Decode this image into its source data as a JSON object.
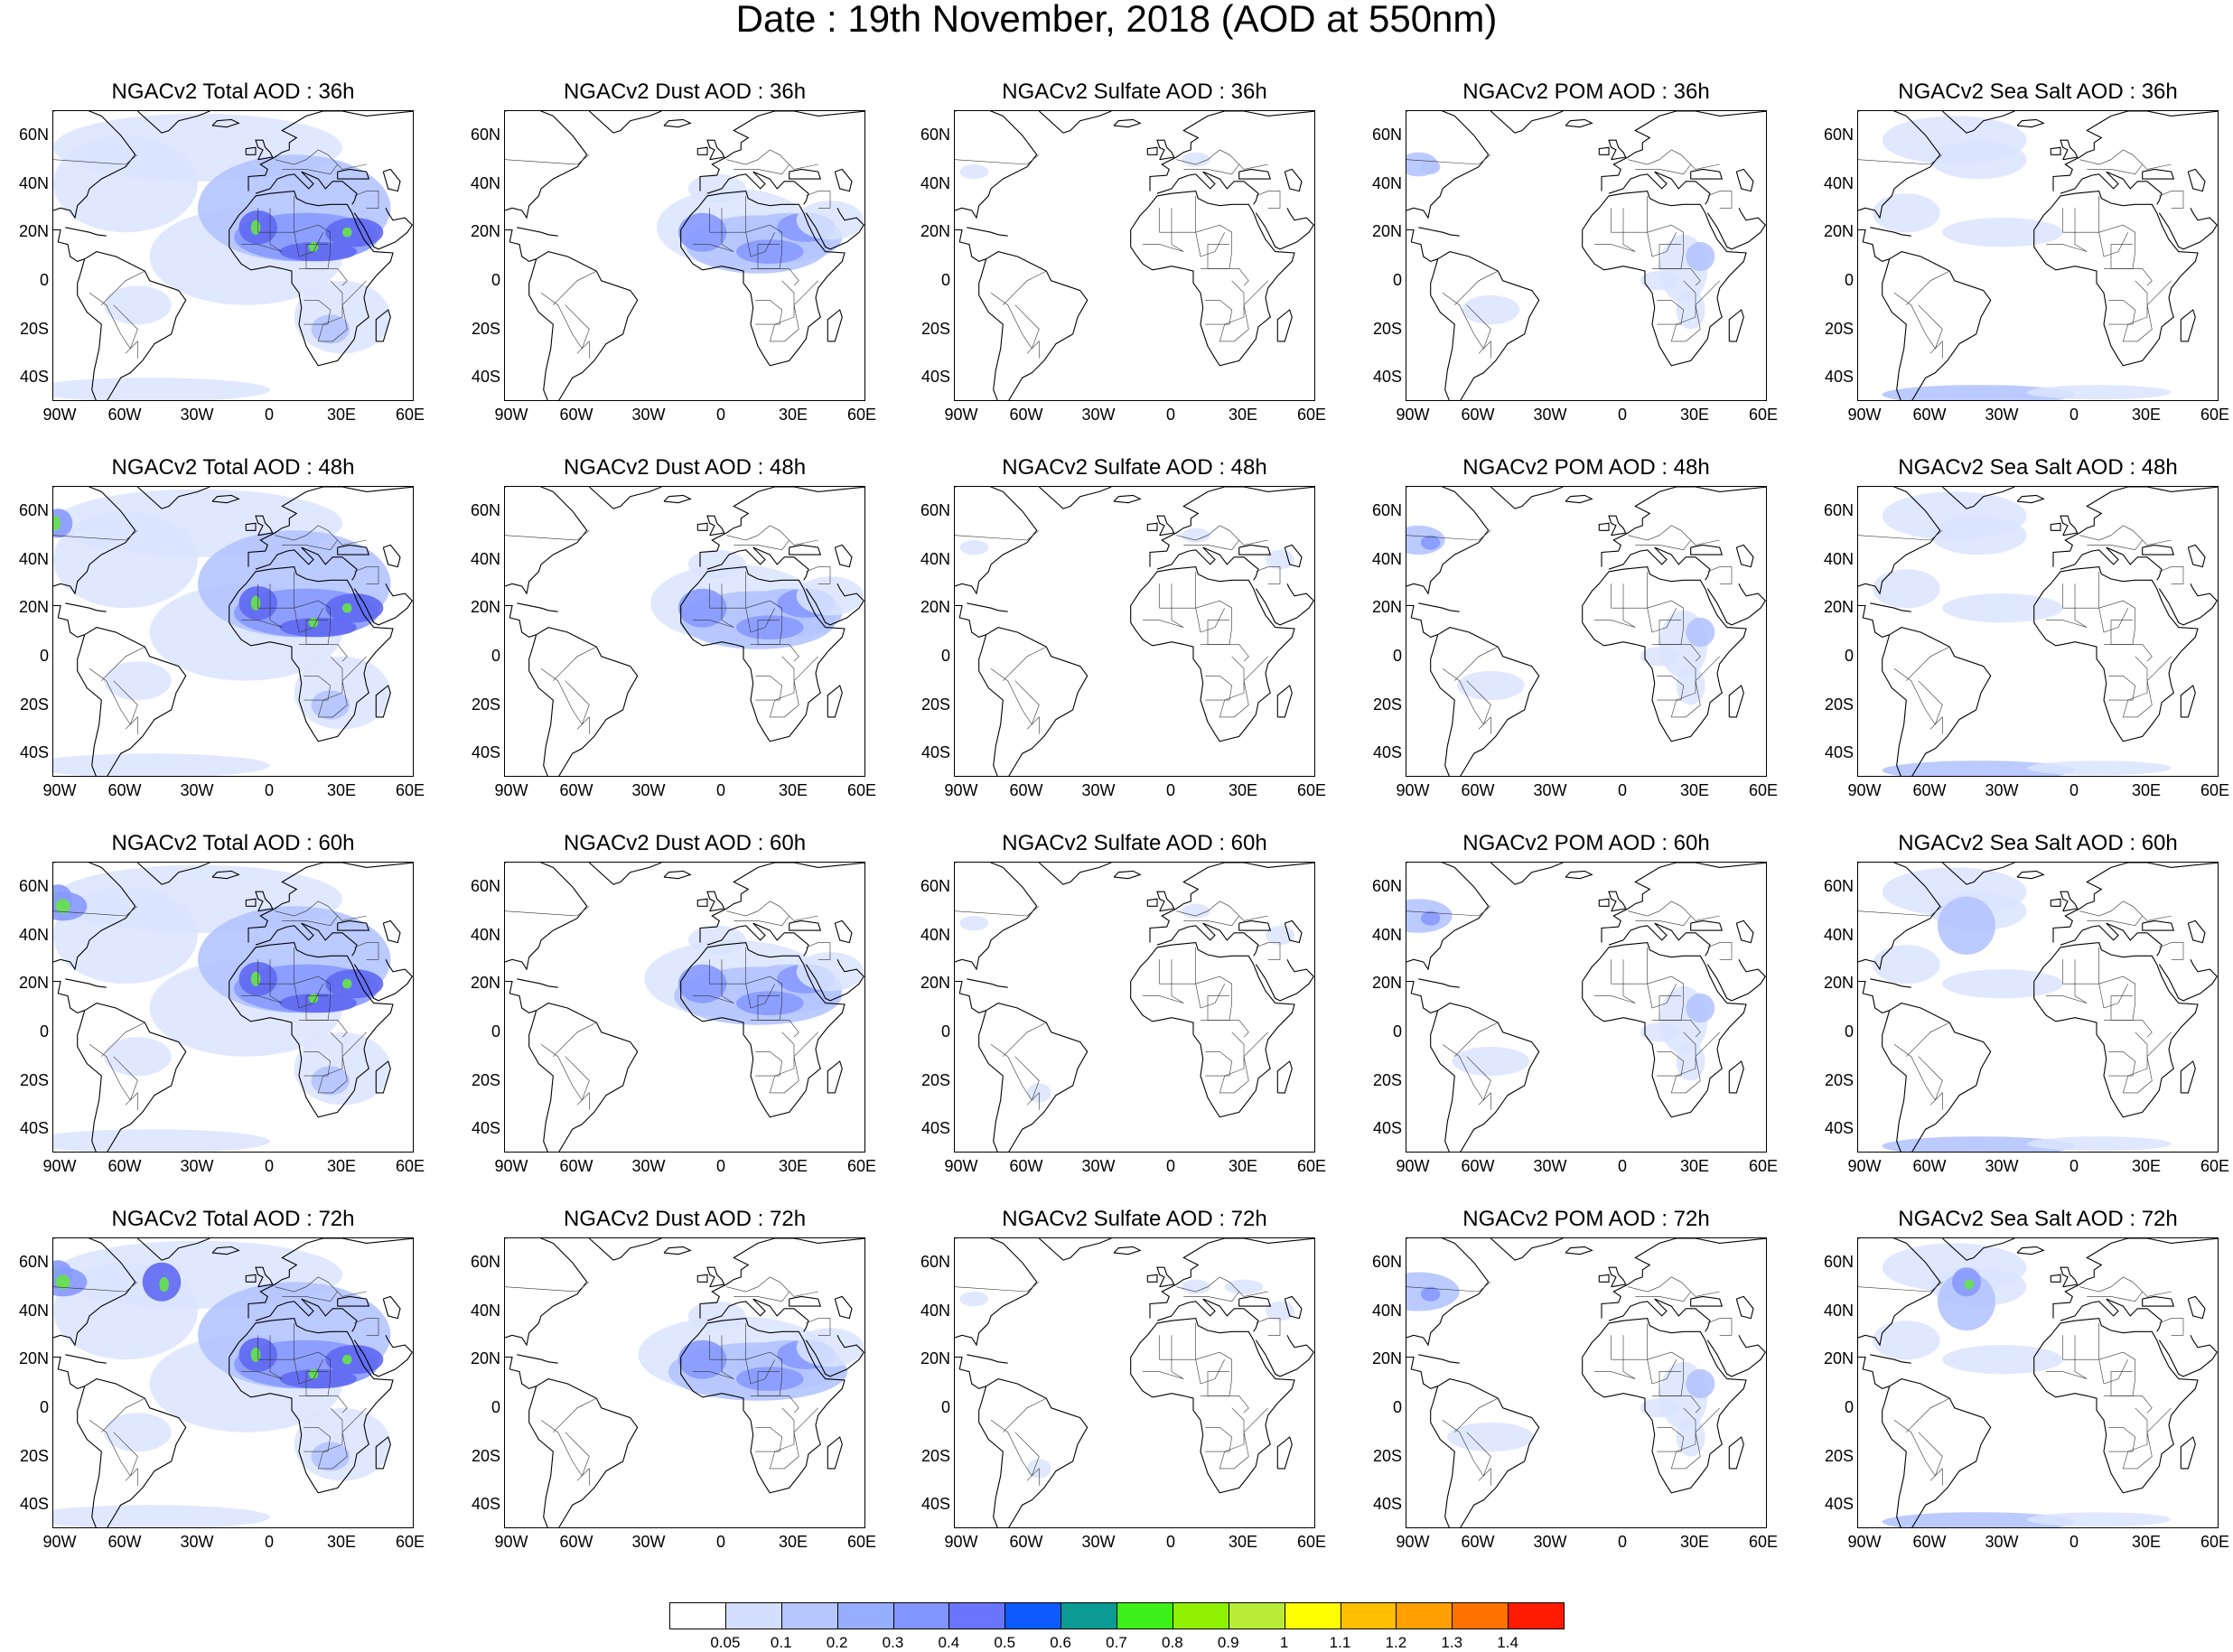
{
  "title": "Date : 19th November, 2018 (AOD at 550nm)",
  "lat_ticks": [
    "60N",
    "40N",
    "20N",
    "0",
    "20S",
    "40S"
  ],
  "lon_ticks": [
    "90W",
    "60W",
    "30W",
    "0",
    "30E",
    "60E"
  ],
  "species": [
    {
      "key": "total",
      "label": "Total AOD"
    },
    {
      "key": "dust",
      "label": "Dust AOD"
    },
    {
      "key": "sulfate",
      "label": "Sulfate AOD"
    },
    {
      "key": "pom",
      "label": "POM AOD"
    },
    {
      "key": "seasalt",
      "label": "Sea Salt AOD"
    }
  ],
  "panel_titles": [
    [
      "NGACv2 Total AOD : 36h",
      "NGACv2 Dust AOD : 36h",
      "NGACv2 Sulfate AOD : 36h",
      "NGACv2 POM AOD : 36h",
      "NGACv2 Sea Salt AOD : 36h"
    ],
    [
      "NGACv2 Total AOD : 48h",
      "NGACv2 Dust AOD : 48h",
      "NGACv2 Sulfate AOD : 48h",
      "NGACv2 POM AOD : 48h",
      "NGACv2 Sea Salt AOD : 48h"
    ],
    [
      "NGACv2 Total AOD : 60h",
      "NGACv2 Dust AOD : 60h",
      "NGACv2 Sulfate AOD : 60h",
      "NGACv2 POM AOD : 60h",
      "NGACv2 Sea Salt AOD : 60h"
    ],
    [
      "NGACv2 Total AOD : 72h",
      "NGACv2 Dust AOD : 72h",
      "NGACv2 Sulfate AOD : 72h",
      "NGACv2 POM AOD : 72h",
      "NGACv2 Sea Salt  AOD : 72h"
    ]
  ],
  "map_extent": {
    "lon": [
      -90,
      60
    ],
    "lat": [
      -50,
      70
    ]
  },
  "colorbar": {
    "labels": [
      "0.05",
      "0.1",
      "0.2",
      "0.3",
      "0.4",
      "0.5",
      "0.6",
      "0.7",
      "0.8",
      "0.9",
      "1",
      "1.1",
      "1.2",
      "1.3",
      "1.4"
    ],
    "colors": [
      "#ffffff",
      "#d4dfff",
      "#b6c6ff",
      "#97aeff",
      "#8194ff",
      "#6a74ff",
      "#0d5aff",
      "#0b9a94",
      "#3cf019",
      "#8ff000",
      "#b9ec36",
      "#ffff00",
      "#ffbf00",
      "#ff9f00",
      "#ff7200",
      "#ff1a00"
    ]
  },
  "map_colors": {
    "light": "#dbe4ff",
    "medium": "#b4c4ff",
    "strong": "#8799ff",
    "deep": "#5f68f2",
    "hot": "#66e34a"
  }
}
